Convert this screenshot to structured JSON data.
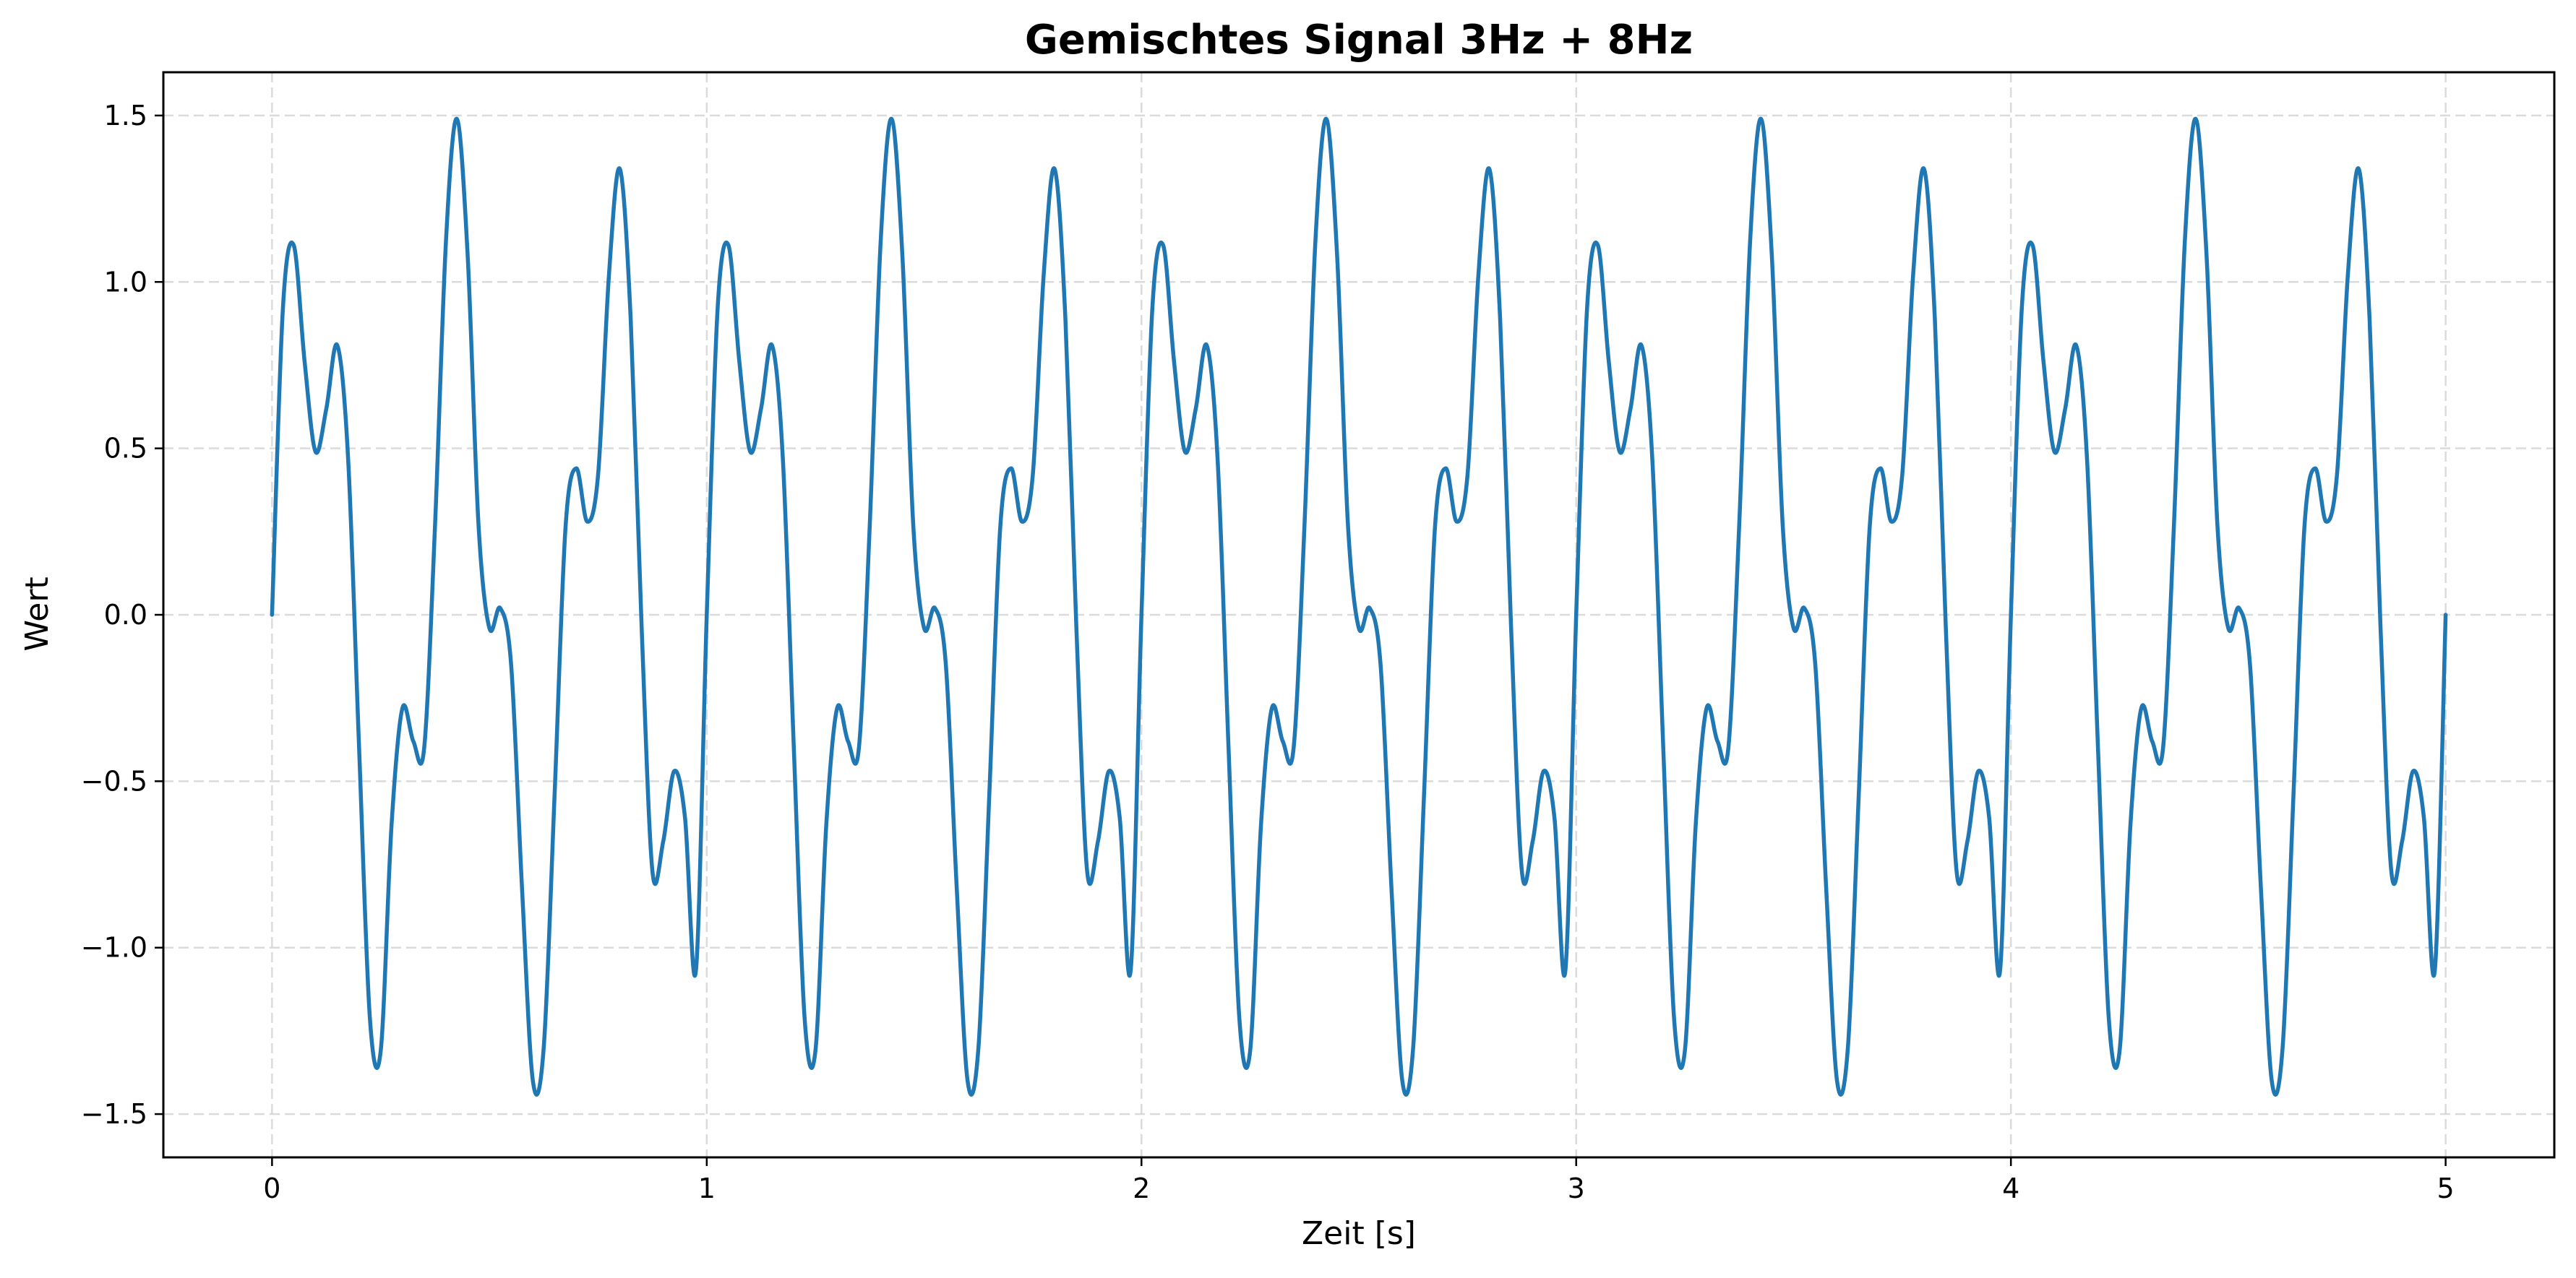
{
  "chart_data": {
    "type": "line",
    "title": "Gemischtes Signal 3Hz + 8Hz",
    "xlabel": "Zeit [s]",
    "ylabel": "Wert",
    "xlim": [
      -0.25,
      5.25
    ],
    "ylim": [
      -1.63,
      1.63
    ],
    "xticks": [
      0,
      1,
      2,
      3,
      4,
      5
    ],
    "xtick_labels": [
      "0",
      "1",
      "2",
      "3",
      "4",
      "5"
    ],
    "yticks": [
      -1.5,
      -1.0,
      -0.5,
      0.0,
      0.5,
      1.0,
      1.5
    ],
    "ytick_labels": [
      "−1.5",
      "−1.0",
      "−0.5",
      "0.0",
      "0.5",
      "1.0",
      "1.5"
    ],
    "grid": true,
    "legend": false,
    "color": "#1f77b4",
    "series": [
      {
        "x": [
          0,
          0.025,
          0.05,
          0.075,
          0.1,
          0.125,
          0.15,
          0.175,
          0.2,
          0.225,
          0.25,
          0.275,
          0.3,
          0.325,
          0.35,
          0.375,
          0.4,
          0.425,
          0.45,
          0.475,
          0.5,
          0.525,
          0.55,
          0.575,
          0.6,
          0.625,
          0.65,
          0.675,
          0.7,
          0.725,
          0.75,
          0.775,
          0.8,
          0.825,
          0.85,
          0.875,
          0.9,
          0.925,
          0.95,
          0.975,
          1,
          1.025,
          1.05,
          1.075,
          1.1,
          1.125,
          1.15,
          1.175,
          1.2,
          1.225,
          1.25,
          1.275,
          1.3,
          1.325,
          1.35,
          1.375,
          1.4,
          1.425,
          1.45,
          1.475,
          1.5,
          1.525,
          1.55,
          1.575,
          1.6,
          1.625,
          1.65,
          1.675,
          1.7,
          1.725,
          1.75,
          1.775,
          1.8,
          1.825,
          1.85,
          1.875,
          1.9,
          1.925,
          1.95,
          1.975,
          2,
          2.025,
          2.05,
          2.075,
          2.1,
          2.125,
          2.15,
          2.175,
          2.2,
          2.225,
          2.25,
          2.275,
          2.3,
          2.325,
          2.35,
          2.375,
          2.4,
          2.425,
          2.45,
          2.475,
          2.5,
          2.525,
          2.55,
          2.575,
          2.6,
          2.625,
          2.65,
          2.675,
          2.7,
          2.725,
          2.75,
          2.775,
          2.8,
          2.825,
          2.85,
          2.875,
          2.9,
          2.925,
          2.95,
          2.975,
          3,
          3.025,
          3.05,
          3.075,
          3.1,
          3.125,
          3.15,
          3.175,
          3.2,
          3.225,
          3.25,
          3.275,
          3.3,
          3.325,
          3.35,
          3.375,
          3.4,
          3.425,
          3.45,
          3.475,
          3.5,
          3.525,
          3.55,
          3.575,
          3.6,
          3.625,
          3.65,
          3.675,
          3.7,
          3.725,
          3.75,
          3.775,
          3.8,
          3.825,
          3.85,
          3.875,
          3.9,
          3.925,
          3.95,
          3.975,
          4,
          4.025,
          4.05,
          4.075,
          4.1,
          4.125,
          4.15,
          4.175,
          4.2,
          4.225,
          4.25,
          4.275,
          4.3,
          4.325,
          4.35,
          4.375,
          4.4,
          4.425,
          4.45,
          4.475,
          4.5,
          4.525,
          4.55,
          4.575,
          4.6,
          4.625,
          4.65,
          4.675,
          4.7,
          4.725,
          4.75,
          4.775,
          4.8,
          4.825,
          4.85,
          4.875,
          4.9,
          4.925,
          4.95,
          4.975,
          5
        ],
        "y": [
          0,
          0.92,
          1.11,
          0.76,
          0.49,
          0.62,
          0.81,
          0.47,
          -0.39,
          -1.21,
          -1.31,
          -0.63,
          -0.28,
          -0.38,
          -0.4,
          0.27,
          1.12,
          1.49,
          1.08,
          0.27,
          -0.04,
          0.02,
          -0.15,
          -0.82,
          -1.4,
          -1.3,
          -0.54,
          0.26,
          0.44,
          0.28,
          0.42,
          1.02,
          1.34,
          0.89,
          -0.03,
          -0.77,
          -0.68,
          -0.47,
          -0.61,
          -1.07,
          0,
          0.92,
          1.11,
          0.76,
          0.49,
          0.62,
          0.81,
          0.47,
          -0.39,
          -1.21,
          -1.31,
          -0.63,
          -0.28,
          -0.38,
          -0.4,
          0.27,
          1.12,
          1.49,
          1.08,
          0.27,
          -0.04,
          0.02,
          -0.15,
          -0.82,
          -1.4,
          -1.3,
          -0.54,
          0.26,
          0.44,
          0.28,
          0.42,
          1.02,
          1.34,
          0.89,
          -0.03,
          -0.77,
          -0.68,
          -0.47,
          -0.61,
          -1.07,
          0,
          0.92,
          1.11,
          0.76,
          0.49,
          0.62,
          0.81,
          0.47,
          -0.39,
          -1.21,
          -1.31,
          -0.63,
          -0.28,
          -0.38,
          -0.4,
          0.27,
          1.12,
          1.49,
          1.08,
          0.27,
          -0.04,
          0.02,
          -0.15,
          -0.82,
          -1.4,
          -1.3,
          -0.54,
          0.26,
          0.44,
          0.28,
          0.42,
          1.02,
          1.34,
          0.89,
          -0.03,
          -0.77,
          -0.68,
          -0.47,
          -0.61,
          -1.07,
          0,
          0.92,
          1.11,
          0.76,
          0.49,
          0.62,
          0.81,
          0.47,
          -0.39,
          -1.21,
          -1.31,
          -0.63,
          -0.28,
          -0.38,
          -0.4,
          0.27,
          1.12,
          1.49,
          1.08,
          0.27,
          -0.04,
          0.02,
          -0.15,
          -0.82,
          -1.4,
          -1.3,
          -0.54,
          0.26,
          0.44,
          0.28,
          0.42,
          1.02,
          1.34,
          0.89,
          -0.03,
          -0.77,
          -0.68,
          -0.47,
          -0.61,
          -1.07,
          0,
          0.92,
          1.11,
          0.76,
          0.49,
          0.62,
          0.81,
          0.47,
          -0.39,
          -1.21,
          -1.31,
          -0.63,
          -0.28,
          -0.38,
          -0.4,
          0.27,
          1.12,
          1.49,
          1.08,
          0.27,
          -0.04,
          0.02,
          -0.15,
          -0.82,
          -1.4,
          -1.3,
          -0.54,
          0.26,
          0.44,
          0.28,
          0.42,
          1.02,
          1.34,
          0.89,
          -0.03,
          -0.77,
          -0.68,
          -0.47,
          -0.61,
          -1.07,
          0
        ]
      }
    ]
  }
}
